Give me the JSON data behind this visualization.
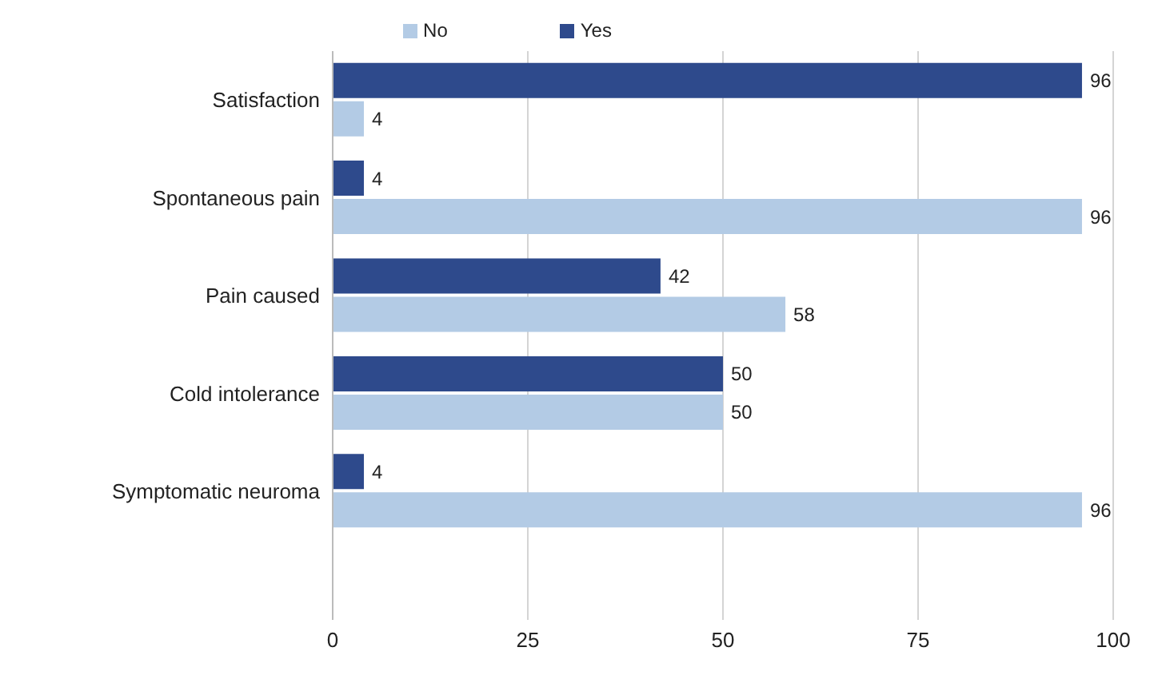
{
  "chart_data": {
    "type": "bar",
    "orientation": "horizontal",
    "categories": [
      "Satisfaction",
      "Spontaneous pain",
      "Pain caused",
      "Cold intolerance",
      "Symptomatic neuroma"
    ],
    "series": [
      {
        "name": "Yes",
        "color": "#2e4a8c",
        "values": [
          96,
          4,
          42,
          50,
          4
        ]
      },
      {
        "name": "No",
        "color": "#b3cbe5",
        "values": [
          4,
          96,
          58,
          50,
          96
        ]
      }
    ],
    "xlim": [
      0,
      100
    ],
    "xticks": [
      0,
      25,
      50,
      75,
      100
    ],
    "grid": "x",
    "legend": "top",
    "data_labels": true
  }
}
